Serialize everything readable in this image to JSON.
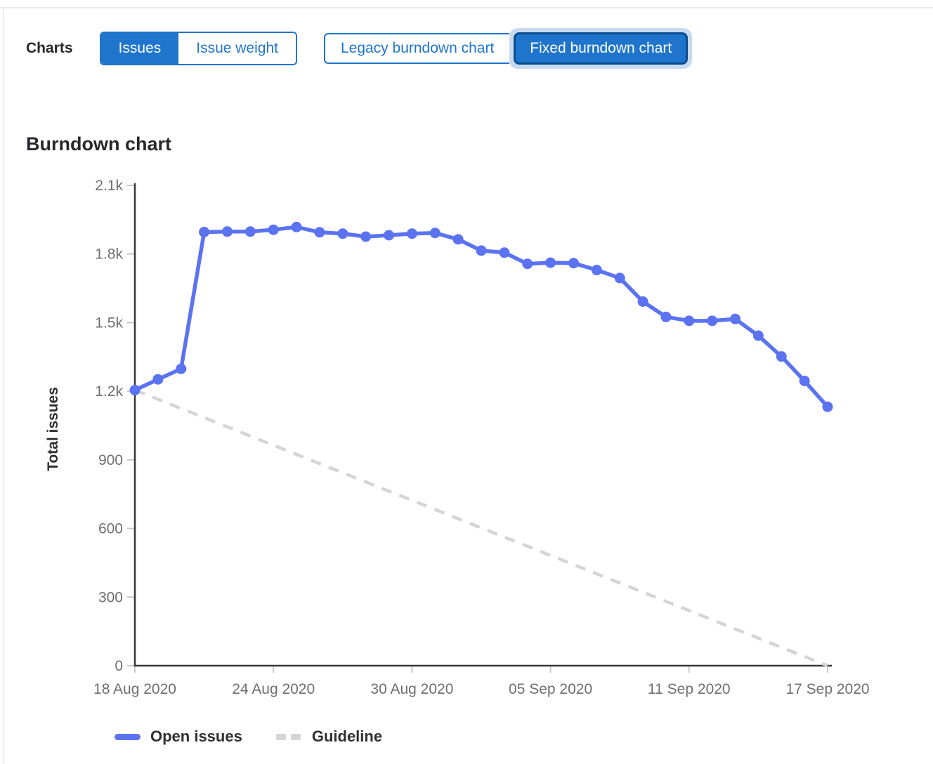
{
  "header": {
    "charts_label": "Charts",
    "metric_toggle": {
      "options": [
        "Issues",
        "Issue weight"
      ],
      "selected": "Issues"
    },
    "chart_toggle": {
      "options": [
        "Legacy burndown chart",
        "Fixed burndown chart"
      ],
      "selected": "Fixed burndown chart"
    }
  },
  "section": {
    "title": "Burndown chart"
  },
  "colors": {
    "accent_blue": "#1f75cb",
    "selected_button_border": "#0a4d8e",
    "focus_halo": "#c9daf0",
    "series_blue": "#5b73f0",
    "guideline_gray": "#d5d5d5",
    "axis_line": "#383838",
    "tick_mark": "#c9c9c9",
    "tick_label": "#6f6f6f",
    "text_dark": "#2f2f33"
  },
  "legend": [
    {
      "label": "Open issues",
      "style": "solid-line",
      "color": "#5b73f0"
    },
    {
      "label": "Guideline",
      "style": "dashed-line",
      "color": "#d5d5d5"
    }
  ],
  "chart_data": {
    "type": "line",
    "title": "Burndown chart",
    "xlabel": "",
    "ylabel": "Total issues",
    "ylim": [
      0,
      2100
    ],
    "grid": false,
    "legend_position": "bottom-left",
    "x": [
      "18 Aug 2020",
      "19 Aug 2020",
      "20 Aug 2020",
      "21 Aug 2020",
      "22 Aug 2020",
      "23 Aug 2020",
      "24 Aug 2020",
      "25 Aug 2020",
      "26 Aug 2020",
      "27 Aug 2020",
      "28 Aug 2020",
      "29 Aug 2020",
      "30 Aug 2020",
      "31 Aug 2020",
      "01 Sep 2020",
      "02 Sep 2020",
      "03 Sep 2020",
      "04 Sep 2020",
      "05 Sep 2020",
      "06 Sep 2020",
      "07 Sep 2020",
      "08 Sep 2020",
      "09 Sep 2020",
      "10 Sep 2020",
      "11 Sep 2020",
      "12 Sep 2020",
      "13 Sep 2020",
      "14 Sep 2020",
      "15 Sep 2020",
      "16 Sep 2020",
      "17 Sep 2020"
    ],
    "xtick_indices": [
      0,
      6,
      12,
      18,
      24,
      30
    ],
    "xtick_labels": [
      "18 Aug 2020",
      "24 Aug 2020",
      "30 Aug 2020",
      "05 Sep 2020",
      "11 Sep 2020",
      "17 Sep 2020"
    ],
    "ytick_values": [
      0,
      300,
      600,
      900,
      1200,
      1500,
      1800,
      2100
    ],
    "ytick_labels": [
      "0",
      "300",
      "600",
      "900",
      "1.2k",
      "1.5k",
      "1.8k",
      "2.1k"
    ],
    "series": [
      {
        "name": "Open issues",
        "type": "line",
        "color": "#5b73f0",
        "values": [
          1205,
          1252,
          1298,
          1896,
          1898,
          1898,
          1906,
          1918,
          1895,
          1889,
          1876,
          1882,
          1889,
          1892,
          1864,
          1815,
          1806,
          1757,
          1762,
          1760,
          1730,
          1695,
          1592,
          1525,
          1508,
          1508,
          1516,
          1443,
          1352,
          1245,
          1132
        ]
      },
      {
        "name": "Guideline",
        "type": "dashed-line",
        "color": "#d5d5d5",
        "points": [
          {
            "x": "18 Aug 2020",
            "y": 1205
          },
          {
            "x": "17 Sep 2020",
            "y": 0
          }
        ]
      }
    ]
  }
}
